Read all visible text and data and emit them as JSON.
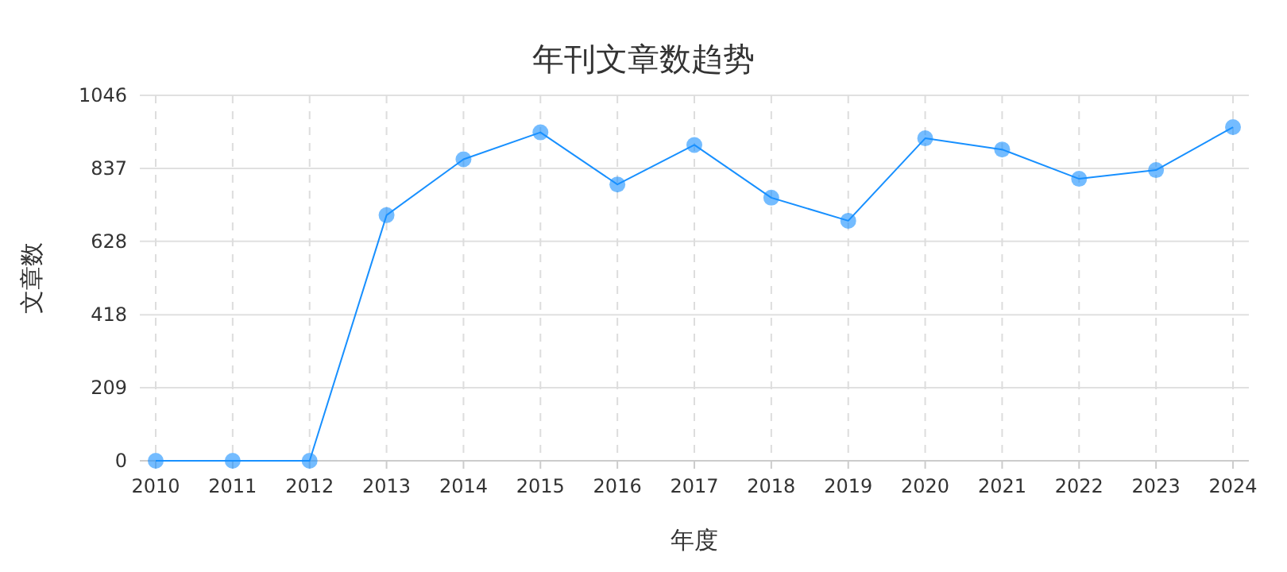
{
  "chart_data": {
    "type": "line",
    "title": "年刊文章数趋势",
    "xlabel": "年度",
    "ylabel": "文章数",
    "categories": [
      "2010",
      "2011",
      "2012",
      "2013",
      "2014",
      "2015",
      "2016",
      "2017",
      "2018",
      "2019",
      "2020",
      "2021",
      "2022",
      "2023",
      "2024"
    ],
    "series": [
      {
        "color": "#1890ff",
        "values": [
          0,
          0,
          0,
          703,
          863,
          940,
          791,
          904,
          753,
          687,
          923,
          891,
          807,
          832,
          955
        ]
      }
    ],
    "ylim": [
      0,
      1046
    ],
    "yticks": [
      0,
      209,
      418,
      628,
      837,
      1046
    ],
    "grid": true,
    "marker": "circle",
    "line_style": "solid"
  }
}
